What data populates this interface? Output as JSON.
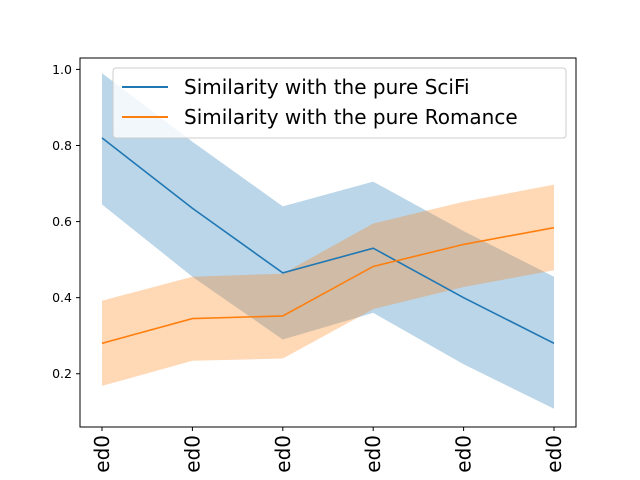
{
  "chart_data": {
    "type": "line",
    "title": "",
    "xlabel": "",
    "ylabel": "",
    "categories": [
      "ed0",
      "ed0",
      "ed0",
      "ed0",
      "ed0",
      "ed0"
    ],
    "ylim": [
      0.06,
      1.03
    ],
    "yticks": [
      "0.2",
      "0.4",
      "0.6",
      "0.8",
      "1.0"
    ],
    "grid": false,
    "legend_position": "top-right",
    "series": [
      {
        "name": "Similarity with the pure SciFi",
        "color": "#1f77b4",
        "values": [
          0.82,
          0.635,
          0.465,
          0.53,
          0.4,
          0.28
        ],
        "band_upper": [
          0.99,
          0.81,
          0.64,
          0.705,
          0.575,
          0.455
        ],
        "band_lower": [
          0.645,
          0.455,
          0.29,
          0.36,
          0.225,
          0.108
        ]
      },
      {
        "name": "Similarity with the pure Romance",
        "color": "#ff7f0e",
        "values": [
          0.28,
          0.345,
          0.352,
          0.482,
          0.54,
          0.584
        ],
        "band_upper": [
          0.392,
          0.455,
          0.463,
          0.595,
          0.652,
          0.697
        ],
        "band_lower": [
          0.168,
          0.234,
          0.24,
          0.37,
          0.428,
          0.472
        ]
      }
    ]
  }
}
